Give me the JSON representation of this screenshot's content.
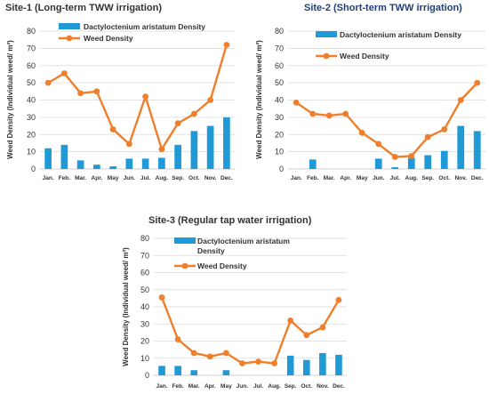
{
  "colors": {
    "bar": "#1f9ad6",
    "line": "#ee7f2d",
    "grid": "#d9d9d9",
    "text": "#333333"
  },
  "chart_data": [
    {
      "type": "bar",
      "title": "Site-1 (Long-term TWW irrigation)",
      "ylabel": "Weed Density (Individual weed/ m²)",
      "xlabel": "",
      "ylim": [
        0,
        80
      ],
      "yticks": [
        0,
        10,
        20,
        30,
        40,
        50,
        60,
        70,
        80
      ],
      "categories": [
        "Jan.",
        "Feb.",
        "Mar.",
        "Apr.",
        "May",
        "Jun.",
        "Jul.",
        "Aug.",
        "Sep.",
        "Oct.",
        "Nov.",
        "Dec."
      ],
      "grid": true,
      "legend_placement": "top",
      "series": [
        {
          "name": "Dactyloctenium aristatum Density",
          "kind": "bar",
          "values": [
            12,
            14,
            5,
            2.5,
            1.5,
            6,
            6,
            6.5,
            14,
            22,
            25,
            30
          ]
        },
        {
          "name": "Weed Density",
          "kind": "line",
          "values": [
            50,
            55.5,
            44,
            45,
            23,
            14.5,
            42,
            11.5,
            26.5,
            32,
            40,
            72
          ]
        }
      ]
    },
    {
      "type": "bar",
      "title": "Site-2 (Short-term TWW irrigation)",
      "ylabel": "Weed Density (Individual weed/ m²)",
      "xlabel": "",
      "ylim": [
        0,
        80
      ],
      "yticks": [
        0,
        10,
        20,
        30,
        40,
        50,
        60,
        70,
        80
      ],
      "categories": [
        "Jan.",
        "Feb.",
        "Mar.",
        "Apr.",
        "May",
        "Jun.",
        "Jul.",
        "Aug.",
        "Sep.",
        "Oct.",
        "Nov.",
        "Dec."
      ],
      "grid": true,
      "legend_placement": "top",
      "series": [
        {
          "name": "Dactyloctenium aristatum Density",
          "kind": "bar",
          "values": [
            0,
            5.5,
            0,
            0,
            0,
            6,
            1,
            6.5,
            8,
            10.5,
            25,
            22
          ]
        },
        {
          "name": "Weed Density",
          "kind": "line",
          "values": [
            38.5,
            32,
            31,
            32,
            21,
            14.5,
            7,
            7.5,
            18.5,
            23,
            40,
            50
          ]
        }
      ]
    },
    {
      "type": "bar",
      "title": "Site-3 (Regular tap water irrigation)",
      "ylabel": "Weed Density (Individual weed/ m²)",
      "xlabel": "",
      "ylim": [
        0,
        80
      ],
      "yticks": [
        0,
        10,
        20,
        30,
        40,
        50,
        60,
        70,
        80
      ],
      "categories": [
        "Jan.",
        "Feb.",
        "Mar.",
        "Apr.",
        "May",
        "Jun.",
        "Jul.",
        "Aug.",
        "Sep.",
        "Oct.",
        "Nov.",
        "Dec."
      ],
      "grid": true,
      "legend_placement": "top",
      "series": [
        {
          "name": "Dactyloctenium aristatum Density",
          "kind": "bar",
          "values": [
            5.5,
            5.5,
            3,
            0,
            3,
            0,
            0,
            0,
            11.5,
            9,
            13,
            12
          ]
        },
        {
          "name": "Weed Density",
          "kind": "line",
          "values": [
            45.5,
            21,
            13,
            11,
            13,
            7,
            8,
            7,
            32,
            23.5,
            28,
            44
          ]
        }
      ]
    }
  ]
}
